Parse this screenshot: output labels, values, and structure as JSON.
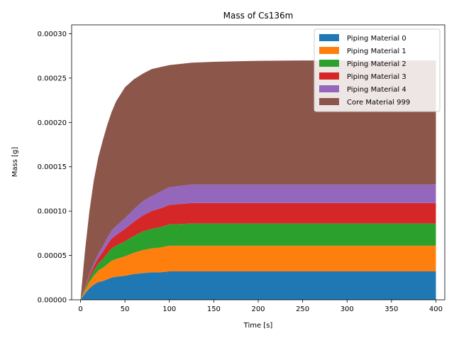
{
  "chart_data": {
    "type": "area",
    "stacked": true,
    "title": "Mass of Cs136m",
    "xlabel": "Time [s]",
    "ylabel": "Mass [g]",
    "xlim": [
      -10,
      410
    ],
    "ylim": [
      0,
      0.00031
    ],
    "xticks": [
      0,
      50,
      100,
      150,
      200,
      250,
      300,
      350,
      400
    ],
    "yticks": [
      0,
      5e-05,
      0.0001,
      0.00015,
      0.0002,
      0.00025,
      0.0003
    ],
    "ytick_labels": [
      "0.00000",
      "0.00005",
      "0.00010",
      "0.00015",
      "0.00020",
      "0.00025",
      "0.00030"
    ],
    "legend_position": "top-right",
    "x": [
      0,
      5,
      10,
      15,
      20,
      25,
      30,
      35,
      40,
      50,
      60,
      70,
      80,
      90,
      100,
      125,
      150,
      175,
      200,
      250,
      300,
      350,
      400
    ],
    "series": [
      {
        "name": "Piping Material 0",
        "color": "#1f77b4",
        "values": [
          0,
          7e-06,
          1.3e-05,
          1.7e-05,
          2e-05,
          2.1e-05,
          2.3e-05,
          2.5e-05,
          2.6e-05,
          2.7e-05,
          2.9e-05,
          3e-05,
          3.1e-05,
          3.1e-05,
          3.2e-05,
          3.2e-05,
          3.2e-05,
          3.2e-05,
          3.2e-05,
          3.2e-05,
          3.2e-05,
          3.2e-05,
          3.2e-05
        ]
      },
      {
        "name": "Piping Material 1",
        "color": "#ff7f0e",
        "values": [
          0,
          3e-06,
          7e-06,
          1e-05,
          1.3e-05,
          1.5e-05,
          1.7e-05,
          1.9e-05,
          2e-05,
          2.2e-05,
          2.4e-05,
          2.6e-05,
          2.7e-05,
          2.8e-05,
          2.9e-05,
          2.9e-05,
          2.9e-05,
          2.9e-05,
          2.9e-05,
          2.9e-05,
          2.9e-05,
          2.9e-05,
          2.9e-05
        ]
      },
      {
        "name": "Piping Material 2",
        "color": "#2ca02c",
        "values": [
          0,
          2e-06,
          4e-06,
          6e-06,
          8e-06,
          1e-05,
          1.2e-05,
          1.4e-05,
          1.5e-05,
          1.7e-05,
          1.9e-05,
          2.1e-05,
          2.2e-05,
          2.3e-05,
          2.4e-05,
          2.5e-05,
          2.5e-05,
          2.5e-05,
          2.5e-05,
          2.5e-05,
          2.5e-05,
          2.5e-05,
          2.5e-05
        ]
      },
      {
        "name": "Piping Material 3",
        "color": "#d62728",
        "values": [
          0,
          1e-06,
          3e-06,
          5e-06,
          6e-06,
          8e-06,
          1e-05,
          1.1e-05,
          1.2e-05,
          1.4e-05,
          1.6e-05,
          1.8e-05,
          2e-05,
          2.1e-05,
          2.2e-05,
          2.3e-05,
          2.3e-05,
          2.3e-05,
          2.3e-05,
          2.3e-05,
          2.3e-05,
          2.3e-05,
          2.3e-05
        ]
      },
      {
        "name": "Piping Material 4",
        "color": "#9467bd",
        "values": [
          0,
          1e-06,
          2e-06,
          3e-06,
          5e-06,
          6e-06,
          8e-06,
          9e-06,
          1e-05,
          1.2e-05,
          1.4e-05,
          1.6e-05,
          1.7e-05,
          1.9e-05,
          2e-05,
          2.1e-05,
          2.1e-05,
          2.1e-05,
          2.1e-05,
          2.1e-05,
          2.1e-05,
          2.1e-05,
          2.1e-05
        ]
      },
      {
        "name": "Core Material 999",
        "color": "#8c564b",
        "values": [
          0,
          4.1e-05,
          7.1e-05,
          9.39e-05,
          0.0001087,
          0.0001195,
          0.000127,
          0.0001338,
          0.0001407,
          0.0001476,
          0.0001466,
          0.0001439,
          0.0001431,
          0.0001404,
          0.0001376,
          0.0001373,
          0.0001383,
          0.0001389,
          0.0001394,
          0.0001398,
          0.0001398,
          0.0001398,
          0.0001398
        ]
      }
    ]
  }
}
